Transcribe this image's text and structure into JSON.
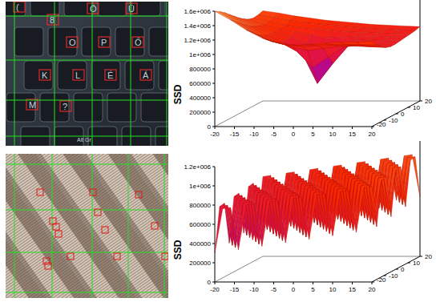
{
  "keyboard_photo": {
    "key_labels": [
      "(",
      "8",
      "Ö",
      "Ü",
      "O",
      "P",
      "Ő",
      "K",
      "L",
      "É",
      "Á",
      "M",
      "?",
      "Alt Gr"
    ]
  },
  "chart_data": [
    {
      "type": "surface",
      "zlabel": "SSD",
      "x": [
        -20,
        -16,
        -12,
        -8,
        -4,
        0,
        4,
        8,
        12,
        16,
        20
      ],
      "y": [
        -20,
        -16,
        -12,
        -8,
        -4,
        0,
        4,
        8,
        12,
        16,
        20
      ],
      "z": [
        [
          1600000,
          1480000,
          1340000,
          1230000,
          1160000,
          1130000,
          1140000,
          1160000,
          1170000,
          1170000,
          1180000
        ],
        [
          1560000,
          1420000,
          1280000,
          1170000,
          1110000,
          1090000,
          1100000,
          1110000,
          1110000,
          1100000,
          1100000
        ],
        [
          1510000,
          1360000,
          1210000,
          1110000,
          1060000,
          1040000,
          1050000,
          1060000,
          1060000,
          1050000,
          1040000
        ],
        [
          1450000,
          1300000,
          1160000,
          1060000,
          1000000,
          950000,
          980000,
          1010000,
          1010000,
          1000000,
          990000
        ],
        [
          1390000,
          1250000,
          1120000,
          1020000,
          900000,
          680000,
          820000,
          960000,
          990000,
          980000,
          970000
        ],
        [
          1330000,
          1210000,
          1100000,
          1010000,
          850000,
          420000,
          700000,
          950000,
          980000,
          970000,
          970000
        ],
        [
          1280000,
          1180000,
          1090000,
          1030000,
          940000,
          820000,
          900000,
          980000,
          990000,
          980000,
          980000
        ],
        [
          1240000,
          1160000,
          1100000,
          1060000,
          1020000,
          980000,
          990000,
          1000000,
          1000000,
          990000,
          990000
        ],
        [
          1220000,
          1170000,
          1120000,
          1090000,
          1070000,
          1050000,
          1030000,
          1020000,
          1010000,
          1000000,
          1000000
        ],
        [
          1230000,
          1190000,
          1150000,
          1120000,
          1100000,
          1080000,
          1060000,
          1040000,
          1030000,
          1020000,
          1010000
        ],
        [
          1250000,
          1220000,
          1180000,
          1150000,
          1120000,
          1100000,
          1080000,
          1060000,
          1050000,
          1040000,
          1030000
        ]
      ],
      "xlim": [
        -20,
        20
      ],
      "ylim": [
        -20,
        20
      ],
      "zlim": [
        0,
        1600000
      ],
      "xticks": [
        -20,
        -15,
        -10,
        -5,
        0,
        5,
        10,
        15,
        20
      ],
      "yticks": [
        -20,
        -10,
        0,
        10,
        20
      ],
      "zticks": [
        0,
        200000,
        400000,
        600000,
        800000,
        {
          "value": 1000000,
          "label": "1e+006"
        },
        {
          "value": 1200000,
          "label": "1.2e+006"
        },
        {
          "value": 1400000,
          "label": "1.4e+006"
        },
        {
          "value": 1600000,
          "label": "1.6e+006"
        }
      ]
    },
    {
      "type": "surface",
      "zlabel": "SSD",
      "x": [
        -20,
        -18,
        -16,
        -14,
        -12,
        -10,
        -8,
        -6,
        -4,
        -2,
        0,
        2,
        4,
        6,
        8,
        10,
        12,
        14,
        16,
        18,
        20
      ],
      "y": [
        -20,
        -16,
        -12,
        -8,
        -4,
        0,
        4,
        8,
        12,
        16,
        20
      ],
      "z": [
        [
          300000,
          762000,
          774000,
          336000,
          798000,
          810000,
          372000,
          834000,
          846000,
          408000,
          870000,
          882000,
          444000,
          906000,
          918000,
          480000,
          942000,
          954000,
          516000,
          978000,
          990000
        ],
        [
          758000,
          770000,
          332000,
          794000,
          806000,
          368000,
          830000,
          842000,
          404000,
          866000,
          878000,
          440000,
          902000,
          914000,
          476000,
          938000,
          950000,
          512000,
          974000,
          986000,
          548000
        ],
        [
          766000,
          328000,
          790000,
          802000,
          364000,
          826000,
          838000,
          400000,
          862000,
          874000,
          436000,
          898000,
          910000,
          472000,
          934000,
          946000,
          508000,
          970000,
          982000,
          544000,
          1006000
        ],
        [
          324000,
          786000,
          798000,
          360000,
          822000,
          834000,
          396000,
          858000,
          870000,
          432000,
          894000,
          906000,
          468000,
          930000,
          942000,
          504000,
          966000,
          978000,
          540000,
          1002000,
          1014000
        ],
        [
          782000,
          794000,
          356000,
          818000,
          830000,
          392000,
          854000,
          866000,
          428000,
          890000,
          902000,
          464000,
          926000,
          938000,
          500000,
          962000,
          974000,
          536000,
          998000,
          1010000,
          572000
        ],
        [
          790000,
          352000,
          814000,
          826000,
          388000,
          850000,
          862000,
          424000,
          886000,
          898000,
          460000,
          922000,
          934000,
          496000,
          958000,
          970000,
          532000,
          994000,
          1006000,
          568000,
          1030000
        ],
        [
          348000,
          810000,
          822000,
          384000,
          846000,
          858000,
          420000,
          882000,
          894000,
          456000,
          918000,
          930000,
          492000,
          954000,
          966000,
          528000,
          990000,
          1002000,
          564000,
          1026000,
          1038000
        ],
        [
          806000,
          818000,
          380000,
          842000,
          854000,
          416000,
          878000,
          890000,
          452000,
          914000,
          926000,
          488000,
          950000,
          962000,
          524000,
          986000,
          998000,
          560000,
          1022000,
          1034000,
          596000
        ],
        [
          814000,
          376000,
          838000,
          850000,
          412000,
          874000,
          886000,
          448000,
          910000,
          922000,
          484000,
          946000,
          958000,
          520000,
          982000,
          994000,
          556000,
          1018000,
          1030000,
          592000,
          1054000
        ],
        [
          372000,
          834000,
          846000,
          408000,
          870000,
          882000,
          444000,
          906000,
          918000,
          480000,
          942000,
          954000,
          516000,
          978000,
          990000,
          552000,
          1014000,
          1026000,
          588000,
          1050000,
          1062000
        ],
        [
          830000,
          842000,
          404000,
          866000,
          878000,
          440000,
          902000,
          914000,
          476000,
          938000,
          950000,
          512000,
          974000,
          986000,
          548000,
          1010000,
          1022000,
          584000,
          1046000,
          1058000,
          620000
        ]
      ],
      "xlim": [
        -20,
        20
      ],
      "ylim": [
        -20,
        20
      ],
      "zlim": [
        0,
        1200000
      ],
      "xticks": [
        -20,
        -15,
        -10,
        -5,
        0,
        5,
        10,
        15,
        20
      ],
      "yticks": [
        -20,
        -10,
        0,
        10,
        20
      ],
      "zticks": [
        0,
        200000,
        400000,
        600000,
        800000,
        {
          "value": 1000000,
          "label": "1e+006"
        },
        {
          "value": 1200000,
          "label": "1.2e+006"
        }
      ]
    }
  ]
}
